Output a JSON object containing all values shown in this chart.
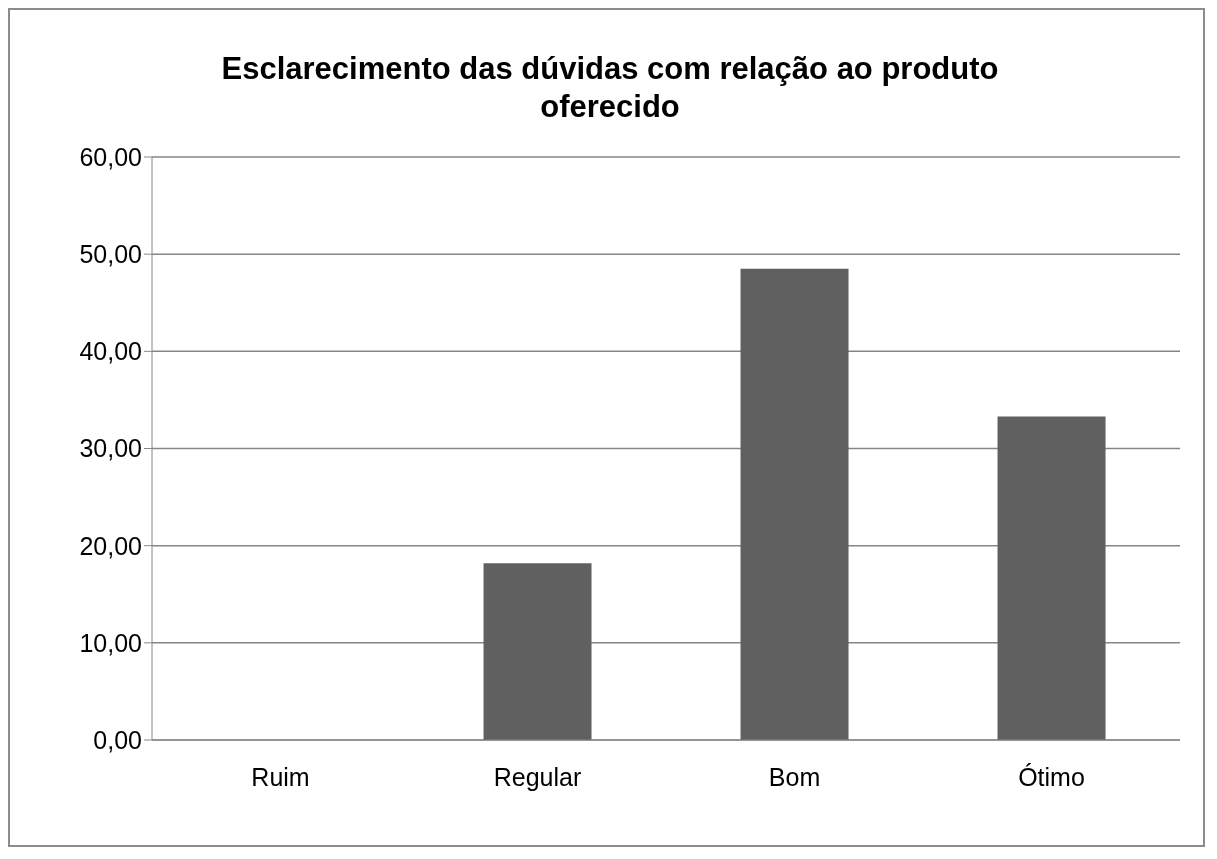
{
  "chart_data": {
    "type": "bar",
    "title": "Esclarecimento das dúvidas com relação ao produto oferecido",
    "categories": [
      "Ruim",
      "Regular",
      "Bom",
      "Ótimo"
    ],
    "values": [
      0,
      18.2,
      48.5,
      33.3
    ],
    "color": "#606060",
    "ylim": [
      0,
      60
    ],
    "yticks": [
      {
        "value": 0,
        "label": "0,00"
      },
      {
        "value": 10,
        "label": "10,00"
      },
      {
        "value": 20,
        "label": "20,00"
      },
      {
        "value": 30,
        "label": "30,00"
      },
      {
        "value": 40,
        "label": "40,00"
      },
      {
        "value": 50,
        "label": "50,00"
      },
      {
        "value": 60,
        "label": "60,00"
      }
    ],
    "grid": "y",
    "legend": false
  }
}
